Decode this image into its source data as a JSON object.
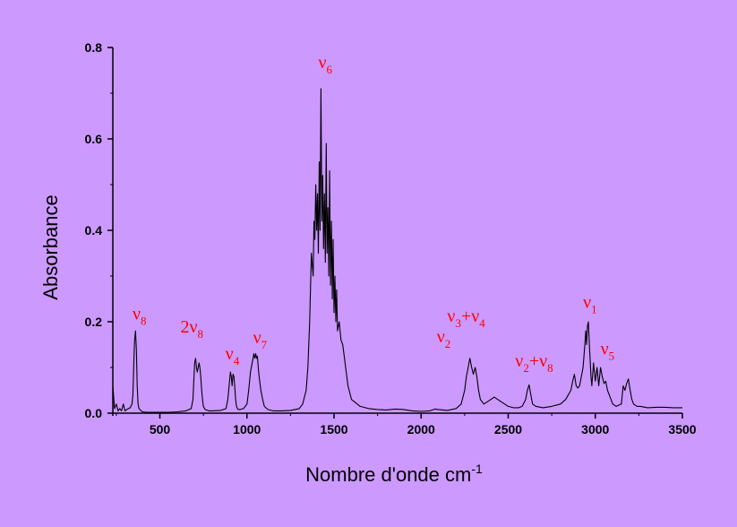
{
  "chart_data": {
    "type": "line",
    "title": "",
    "xlabel": "Nombre d'onde cm",
    "xlabel_superscript": "-1",
    "ylabel": "Absorbance",
    "xlim": [
      230,
      3500
    ],
    "ylim": [
      0.0,
      0.8
    ],
    "x_ticks": [
      500,
      1000,
      1500,
      2000,
      2500,
      3000,
      3500
    ],
    "y_ticks": [
      0.0,
      0.2,
      0.4,
      0.6,
      0.8
    ],
    "x_tick_labels": [
      "500",
      "1000",
      "1500",
      "2000",
      "2500",
      "3000",
      "3500"
    ],
    "y_tick_labels": [
      "0.0",
      "0.2",
      "0.4",
      "0.6",
      "0.8"
    ],
    "grid": false,
    "legend": "none",
    "line_color": "#000000",
    "annotation_color": "#ff0000",
    "series": [
      {
        "x": [
          230,
          240,
          250,
          260,
          270,
          280,
          290,
          300,
          310,
          320,
          330,
          340,
          345,
          350,
          355,
          360,
          365,
          370,
          375,
          380,
          390,
          400,
          420,
          450,
          500,
          550,
          600,
          650,
          680,
          690,
          695,
          700,
          705,
          710,
          715,
          720,
          725,
          730,
          735,
          740,
          745,
          750,
          760,
          780,
          800,
          850,
          880,
          890,
          900,
          905,
          910,
          915,
          920,
          925,
          930,
          935,
          940,
          945,
          950,
          960,
          980,
          1000,
          1010,
          1020,
          1030,
          1040,
          1045,
          1050,
          1055,
          1060,
          1065,
          1070,
          1080,
          1090,
          1100,
          1120,
          1150,
          1200,
          1250,
          1300,
          1320,
          1340,
          1350,
          1360,
          1370,
          1380,
          1385,
          1390,
          1395,
          1400,
          1405,
          1410,
          1415,
          1420,
          1425,
          1430,
          1435,
          1440,
          1445,
          1450,
          1455,
          1460,
          1465,
          1470,
          1475,
          1480,
          1485,
          1490,
          1495,
          1500,
          1505,
          1510,
          1515,
          1520,
          1530,
          1540,
          1550,
          1560,
          1570,
          1580,
          1600,
          1650,
          1700,
          1750,
          1800,
          1850,
          1900,
          1950,
          2000,
          2050,
          2080,
          2100,
          2150,
          2200,
          2230,
          2250,
          2260,
          2270,
          2280,
          2290,
          2300,
          2310,
          2320,
          2330,
          2340,
          2360,
          2380,
          2400,
          2420,
          2440,
          2460,
          2480,
          2500,
          2530,
          2560,
          2580,
          2600,
          2610,
          2620,
          2630,
          2640,
          2660,
          2700,
          2750,
          2800,
          2830,
          2860,
          2870,
          2880,
          2890,
          2900,
          2910,
          2920,
          2930,
          2940,
          2945,
          2950,
          2955,
          2960,
          2965,
          2970,
          2975,
          2980,
          2990,
          3000,
          3010,
          3020,
          3030,
          3040,
          3050,
          3060,
          3070,
          3080,
          3090,
          3100,
          3120,
          3150,
          3160,
          3170,
          3180,
          3190,
          3200,
          3210,
          3220,
          3240,
          3260,
          3300,
          3350,
          3400,
          3450,
          3500
        ],
        "y": [
          0.06,
          0.01,
          0.02,
          0.005,
          0.01,
          0.005,
          0.02,
          0.005,
          0.008,
          0.01,
          0.012,
          0.02,
          0.04,
          0.1,
          0.16,
          0.18,
          0.14,
          0.06,
          0.02,
          0.01,
          0.006,
          0.003,
          0.002,
          0.002,
          0.002,
          0.002,
          0.003,
          0.005,
          0.01,
          0.03,
          0.07,
          0.11,
          0.12,
          0.1,
          0.09,
          0.1,
          0.11,
          0.1,
          0.08,
          0.05,
          0.03,
          0.015,
          0.008,
          0.005,
          0.005,
          0.006,
          0.01,
          0.03,
          0.07,
          0.09,
          0.08,
          0.06,
          0.085,
          0.08,
          0.06,
          0.03,
          0.015,
          0.01,
          0.008,
          0.008,
          0.01,
          0.02,
          0.05,
          0.09,
          0.11,
          0.13,
          0.12,
          0.13,
          0.12,
          0.125,
          0.1,
          0.08,
          0.05,
          0.03,
          0.015,
          0.008,
          0.005,
          0.005,
          0.006,
          0.01,
          0.02,
          0.05,
          0.1,
          0.2,
          0.35,
          0.3,
          0.42,
          0.38,
          0.5,
          0.4,
          0.48,
          0.35,
          0.55,
          0.4,
          0.71,
          0.42,
          0.52,
          0.36,
          0.48,
          0.33,
          0.59,
          0.35,
          0.45,
          0.3,
          0.53,
          0.28,
          0.42,
          0.25,
          0.38,
          0.22,
          0.3,
          0.2,
          0.27,
          0.18,
          0.2,
          0.16,
          0.15,
          0.12,
          0.09,
          0.06,
          0.03,
          0.015,
          0.01,
          0.008,
          0.007,
          0.009,
          0.008,
          0.005,
          0.004,
          0.005,
          0.009,
          0.008,
          0.006,
          0.01,
          0.02,
          0.05,
          0.08,
          0.1,
          0.12,
          0.1,
          0.085,
          0.1,
          0.08,
          0.05,
          0.03,
          0.02,
          0.025,
          0.03,
          0.035,
          0.03,
          0.025,
          0.02,
          0.015,
          0.012,
          0.012,
          0.015,
          0.03,
          0.05,
          0.062,
          0.04,
          0.02,
          0.015,
          0.012,
          0.015,
          0.02,
          0.03,
          0.05,
          0.07,
          0.085,
          0.06,
          0.055,
          0.06,
          0.08,
          0.1,
          0.15,
          0.18,
          0.15,
          0.19,
          0.2,
          0.16,
          0.12,
          0.08,
          0.06,
          0.11,
          0.07,
          0.1,
          0.06,
          0.1,
          0.08,
          0.065,
          0.07,
          0.05,
          0.04,
          0.03,
          0.02,
          0.015,
          0.02,
          0.06,
          0.05,
          0.065,
          0.075,
          0.05,
          0.03,
          0.02,
          0.015,
          0.015,
          0.012,
          0.013,
          0.013,
          0.012,
          0.012
        ]
      }
    ],
    "annotations": [
      {
        "base": "ν",
        "sub": "8",
        "x": 343,
        "y": 0.205
      },
      {
        "base": "2ν",
        "sub": "8",
        "x": 618,
        "y": 0.176
      },
      {
        "base": "ν",
        "sub": "4",
        "x": 876,
        "y": 0.118
      },
      {
        "base": "ν",
        "sub": "7",
        "x": 1035,
        "y": 0.153
      },
      {
        "base": "ν",
        "sub": "6",
        "x": 1410,
        "y": 0.755
      },
      {
        "base": "ν",
        "sub": "2",
        "x": 2090,
        "y": 0.155
      },
      {
        "base": "ν",
        "sub": "3",
        "extra": "+ν",
        "extra_sub": "4",
        "x": 2150,
        "y": 0.2
      },
      {
        "base": "ν",
        "sub": "2",
        "extra": "+ν",
        "extra_sub": "8",
        "x": 2540,
        "y": 0.102
      },
      {
        "base": "ν",
        "sub": "1",
        "x": 2930,
        "y": 0.23
      },
      {
        "base": "ν",
        "sub": "5",
        "x": 3030,
        "y": 0.128
      }
    ]
  }
}
